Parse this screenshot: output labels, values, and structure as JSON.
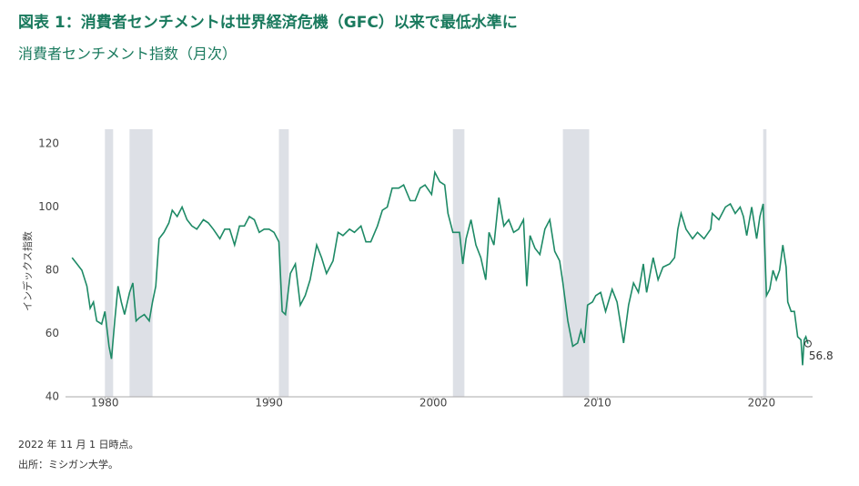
{
  "chart_data": {
    "type": "line",
    "title": "図表 1：消費者センチメントは世界経済危機（GFC）以来で最低水準に",
    "subtitle": "消費者センチメント指数（月次）",
    "y_label": "インデックス指数",
    "notes": [
      "2022 年 11 月 1 日時点。",
      "出所：ミシガン大学。"
    ],
    "x": [
      1978.0,
      1978.3,
      1978.6,
      1978.9,
      1979.1,
      1979.3,
      1979.5,
      1979.8,
      1980.0,
      1980.25,
      1980.4,
      1980.6,
      1980.8,
      1981.0,
      1981.2,
      1981.5,
      1981.7,
      1981.9,
      1982.1,
      1982.4,
      1982.7,
      1982.9,
      1983.1,
      1983.3,
      1983.6,
      1983.9,
      1984.1,
      1984.4,
      1984.7,
      1985.0,
      1985.3,
      1985.6,
      1986.0,
      1986.3,
      1986.6,
      1987.0,
      1987.3,
      1987.6,
      1987.9,
      1988.2,
      1988.5,
      1988.8,
      1989.1,
      1989.4,
      1989.7,
      1990.0,
      1990.3,
      1990.6,
      1990.8,
      1991.0,
      1991.3,
      1991.6,
      1991.9,
      1992.2,
      1992.5,
      1992.9,
      1993.2,
      1993.5,
      1993.9,
      1994.2,
      1994.5,
      1994.9,
      1995.2,
      1995.6,
      1995.9,
      1996.2,
      1996.6,
      1996.9,
      1997.2,
      1997.5,
      1997.9,
      1998.2,
      1998.6,
      1998.9,
      1999.2,
      1999.5,
      1999.9,
      2000.1,
      2000.4,
      2000.7,
      2000.9,
      2001.2,
      2001.6,
      2001.8,
      2002.0,
      2002.3,
      2002.6,
      2002.9,
      2003.2,
      2003.4,
      2003.7,
      2004.0,
      2004.3,
      2004.6,
      2004.9,
      2005.2,
      2005.5,
      2005.7,
      2005.9,
      2006.2,
      2006.5,
      2006.8,
      2007.1,
      2007.4,
      2007.7,
      2007.9,
      2008.2,
      2008.5,
      2008.8,
      2009.0,
      2009.2,
      2009.4,
      2009.7,
      2009.9,
      2010.2,
      2010.5,
      2010.9,
      2011.2,
      2011.6,
      2011.9,
      2012.2,
      2012.5,
      2012.8,
      2013.0,
      2013.4,
      2013.7,
      2014.0,
      2014.4,
      2014.7,
      2014.9,
      2015.1,
      2015.4,
      2015.8,
      2016.1,
      2016.5,
      2016.9,
      2017.0,
      2017.4,
      2017.8,
      2018.1,
      2018.4,
      2018.7,
      2018.9,
      2019.1,
      2019.4,
      2019.7,
      2019.9,
      2020.1,
      2020.3,
      2020.5,
      2020.7,
      2020.9,
      2021.1,
      2021.3,
      2021.5,
      2021.6,
      2021.8,
      2022.0,
      2022.2,
      2022.4,
      2022.5,
      2022.6,
      2022.7,
      2022.83
    ],
    "series": [
      {
        "name": "消費者センチメント指数",
        "color": "#1e8a66",
        "values": [
          84,
          82,
          80,
          75,
          68,
          70,
          64,
          63,
          67,
          56,
          52,
          64,
          75,
          70,
          66,
          73,
          76,
          64,
          65,
          66,
          64,
          70,
          75,
          90,
          92,
          95,
          99,
          97,
          100,
          96,
          94,
          93,
          96,
          95,
          93,
          90,
          93,
          93,
          88,
          94,
          94,
          97,
          96,
          92,
          93,
          93,
          92,
          89,
          67,
          66,
          79,
          82,
          69,
          72,
          77,
          88,
          84,
          79,
          83,
          92,
          91,
          93,
          92,
          94,
          89,
          89,
          94,
          99,
          100,
          106,
          106,
          107,
          102,
          102,
          106,
          107,
          104,
          111,
          108,
          107,
          98,
          92,
          92,
          82,
          90,
          96,
          88,
          84,
          77,
          92,
          88,
          103,
          94,
          96,
          92,
          93,
          96,
          75,
          91,
          87,
          85,
          93,
          96,
          86,
          83,
          76,
          64,
          56,
          57,
          61,
          57,
          69,
          70,
          72,
          73,
          67,
          74,
          70,
          57,
          69,
          76,
          73,
          82,
          73,
          84,
          77,
          81,
          82,
          84,
          93,
          98,
          93,
          90,
          92,
          90,
          93,
          98,
          96,
          100,
          101,
          98,
          100,
          97,
          91,
          100,
          90,
          97,
          101,
          72,
          74,
          80,
          77,
          80,
          88,
          81,
          70,
          67,
          67,
          59,
          58,
          50,
          58,
          59,
          56.8
        ]
      }
    ],
    "recessions": [
      [
        1980.0,
        1980.5
      ],
      [
        1981.5,
        1982.9
      ],
      [
        1990.6,
        1991.2
      ],
      [
        2001.2,
        2001.9
      ],
      [
        2007.9,
        2009.5
      ],
      [
        2020.1,
        2020.3
      ]
    ],
    "recession_color": "#dde0e6",
    "xlim": [
      1977.6,
      2023.0
    ],
    "xticks": [
      1980,
      1990,
      2000,
      2010,
      2020
    ],
    "ylim": [
      40,
      120
    ],
    "yticks": [
      40,
      60,
      80,
      100,
      120
    ]
  }
}
